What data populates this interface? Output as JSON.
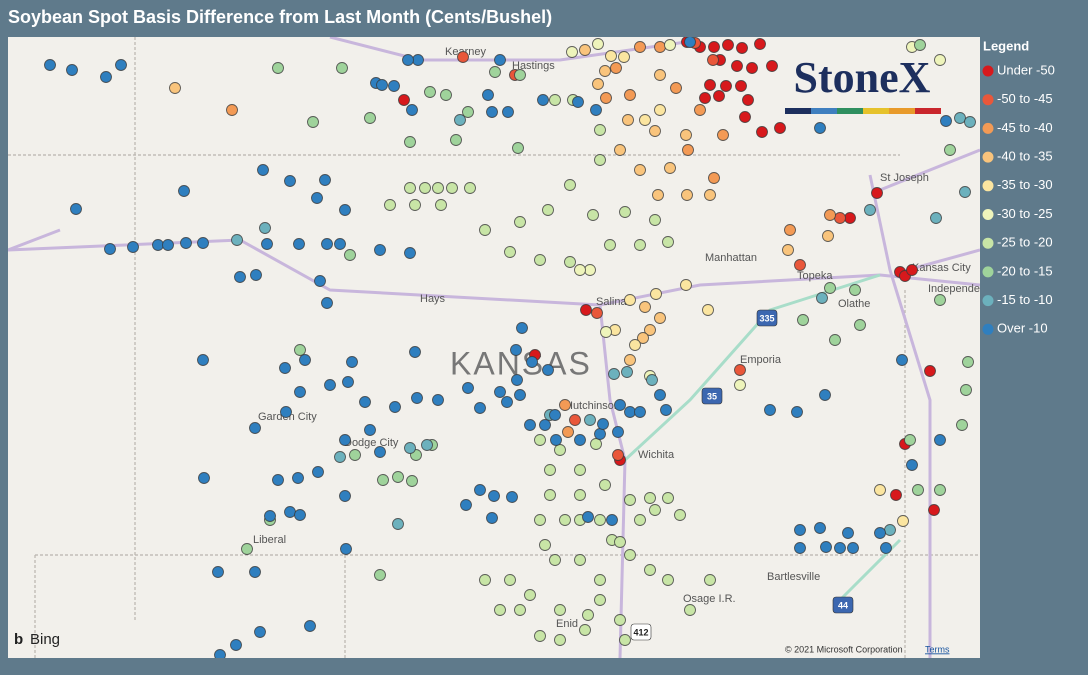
{
  "header": {
    "title": "Soybean Spot Basis Difference from Last Month (Cents/Bushel)"
  },
  "legend": {
    "title": "Legend",
    "items": [
      {
        "label": "Under -50",
        "color": "#d7191c"
      },
      {
        "label": "-50 to -45",
        "color": "#e9573a"
      },
      {
        "label": "-45 to -40",
        "color": "#f39a55"
      },
      {
        "label": "-40 to -35",
        "color": "#f9c47c"
      },
      {
        "label": "-35 to -30",
        "color": "#fbe5a0"
      },
      {
        "label": "-30 to -25",
        "color": "#eef4bb"
      },
      {
        "label": "-25 to -20",
        "color": "#c8e5a6"
      },
      {
        "label": "-20 to -15",
        "color": "#9fd39b"
      },
      {
        "label": "-15 to -10",
        "color": "#6cb1bd"
      },
      {
        "label": "Over -10",
        "color": "#2f7fbf"
      }
    ]
  },
  "map": {
    "places": [
      "Kearney",
      "Hastings",
      "St Joseph",
      "Manhattan",
      "Topeka",
      "Kansas City",
      "Independence",
      "Hays",
      "Salina",
      "Olathe",
      "KANSAS",
      "Garden City",
      "Dodge City",
      "Hutchinson",
      "Emporia",
      "Wichita",
      "Liberal",
      "Bartlesville",
      "Osage I.R.",
      "Enid"
    ],
    "shields": [
      "335",
      "35",
      "44",
      "412"
    ],
    "logo": "StoneX",
    "provider": "Bing",
    "copyright": "© 2021 Microsoft Corporation",
    "terms": "Terms"
  }
}
